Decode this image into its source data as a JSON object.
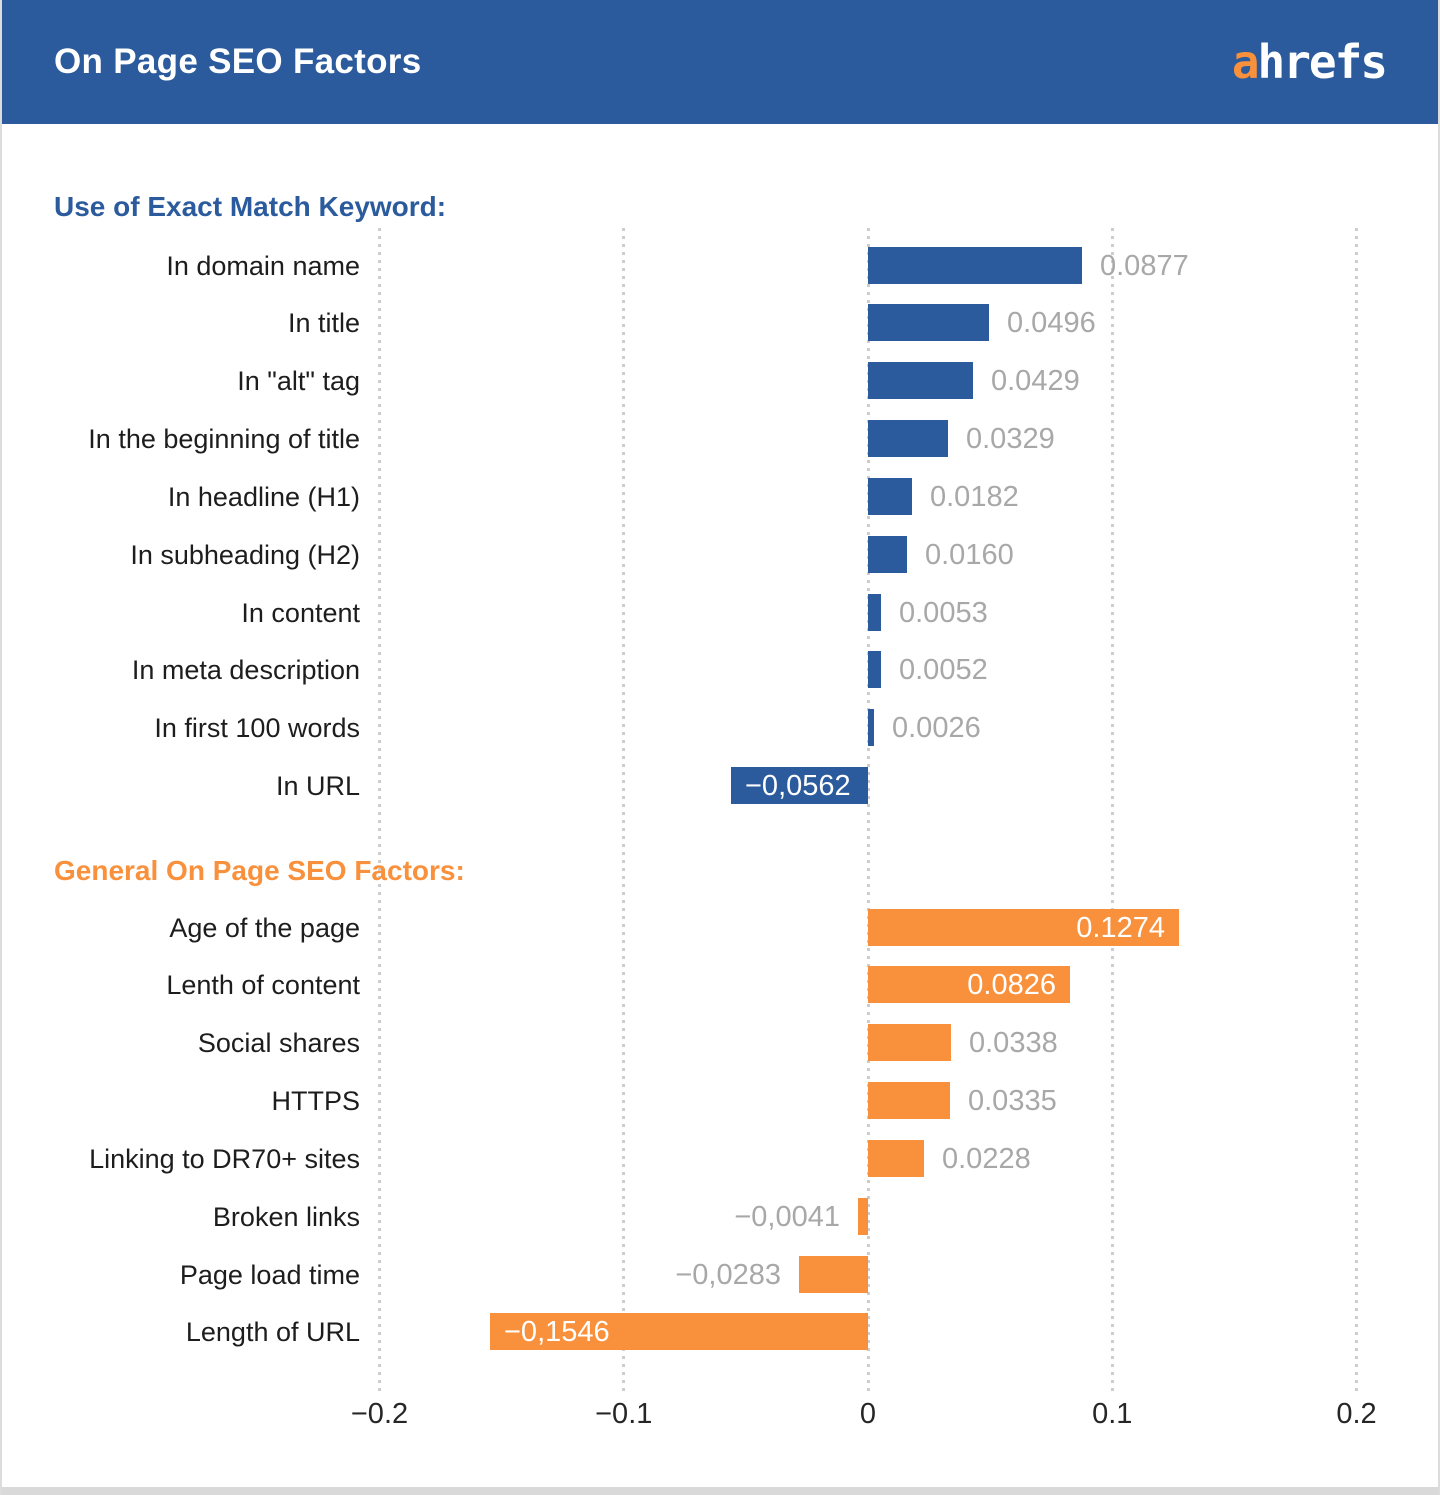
{
  "header": {
    "title": "On Page SEO Factors",
    "logo": {
      "prefix": "a",
      "rest": "hrefs"
    }
  },
  "colors": {
    "header_bg": "#2b5b9d",
    "blue": "#2b5b9d",
    "orange": "#f9913c",
    "logo_a": "#f9913c",
    "value_gray": "#a8a8a8",
    "grid": "#cdcdcd"
  },
  "chart_data": {
    "type": "bar",
    "orientation": "horizontal",
    "title": "On Page SEO Factors",
    "xlabel": "",
    "ylabel": "",
    "xlim": [
      -0.2,
      0.2
    ],
    "grid": "vertical-dotted",
    "x_ticks": [
      {
        "value": -0.2,
        "label": "−0.2"
      },
      {
        "value": -0.1,
        "label": "−0.1"
      },
      {
        "value": 0,
        "label": "0"
      },
      {
        "value": 0.1,
        "label": "0.1"
      },
      {
        "value": 0.2,
        "label": "0.2"
      }
    ],
    "sections": [
      {
        "title": "Use of Exact Match Keyword:",
        "color": "#2b5b9d",
        "rows": [
          {
            "label": "In domain name",
            "value": 0.0877,
            "value_label": "0.0877",
            "inside": false
          },
          {
            "label": "In title",
            "value": 0.0496,
            "value_label": "0.0496",
            "inside": false
          },
          {
            "label": "In \"alt\" tag",
            "value": 0.0429,
            "value_label": "0.0429",
            "inside": false
          },
          {
            "label": "In the beginning of title",
            "value": 0.0329,
            "value_label": "0.0329",
            "inside": false
          },
          {
            "label": "In headline (H1)",
            "value": 0.0182,
            "value_label": "0.0182",
            "inside": false
          },
          {
            "label": "In subheading (H2)",
            "value": 0.016,
            "value_label": "0.0160",
            "inside": false
          },
          {
            "label": "In content",
            "value": 0.0053,
            "value_label": "0.0053",
            "inside": false
          },
          {
            "label": "In meta description",
            "value": 0.0052,
            "value_label": "0.0052",
            "inside": false
          },
          {
            "label": "In first 100 words",
            "value": 0.0026,
            "value_label": "0.0026",
            "inside": false
          },
          {
            "label": "In URL",
            "value": -0.0562,
            "value_label": "−0,0562",
            "inside": true
          }
        ]
      },
      {
        "title": "General On Page SEO Factors:",
        "color": "#f9913c",
        "rows": [
          {
            "label": "Age of the page",
            "value": 0.1274,
            "value_label": "0.1274",
            "inside": true
          },
          {
            "label": "Lenth of content",
            "value": 0.0826,
            "value_label": "0.0826",
            "inside": true
          },
          {
            "label": "Social shares",
            "value": 0.0338,
            "value_label": "0.0338",
            "inside": false
          },
          {
            "label": "HTTPS",
            "value": 0.0335,
            "value_label": "0.0335",
            "inside": false
          },
          {
            "label": "Linking to DR70+ sites",
            "value": 0.0228,
            "value_label": "0.0228",
            "inside": false
          },
          {
            "label": "Broken links",
            "value": -0.0041,
            "value_label": "−0,0041",
            "inside": false
          },
          {
            "label": "Page load time",
            "value": -0.0283,
            "value_label": "−0,0283",
            "inside": false
          },
          {
            "label": "Length of URL",
            "value": -0.1546,
            "value_label": "−0,1546",
            "inside": true
          }
        ]
      }
    ]
  }
}
